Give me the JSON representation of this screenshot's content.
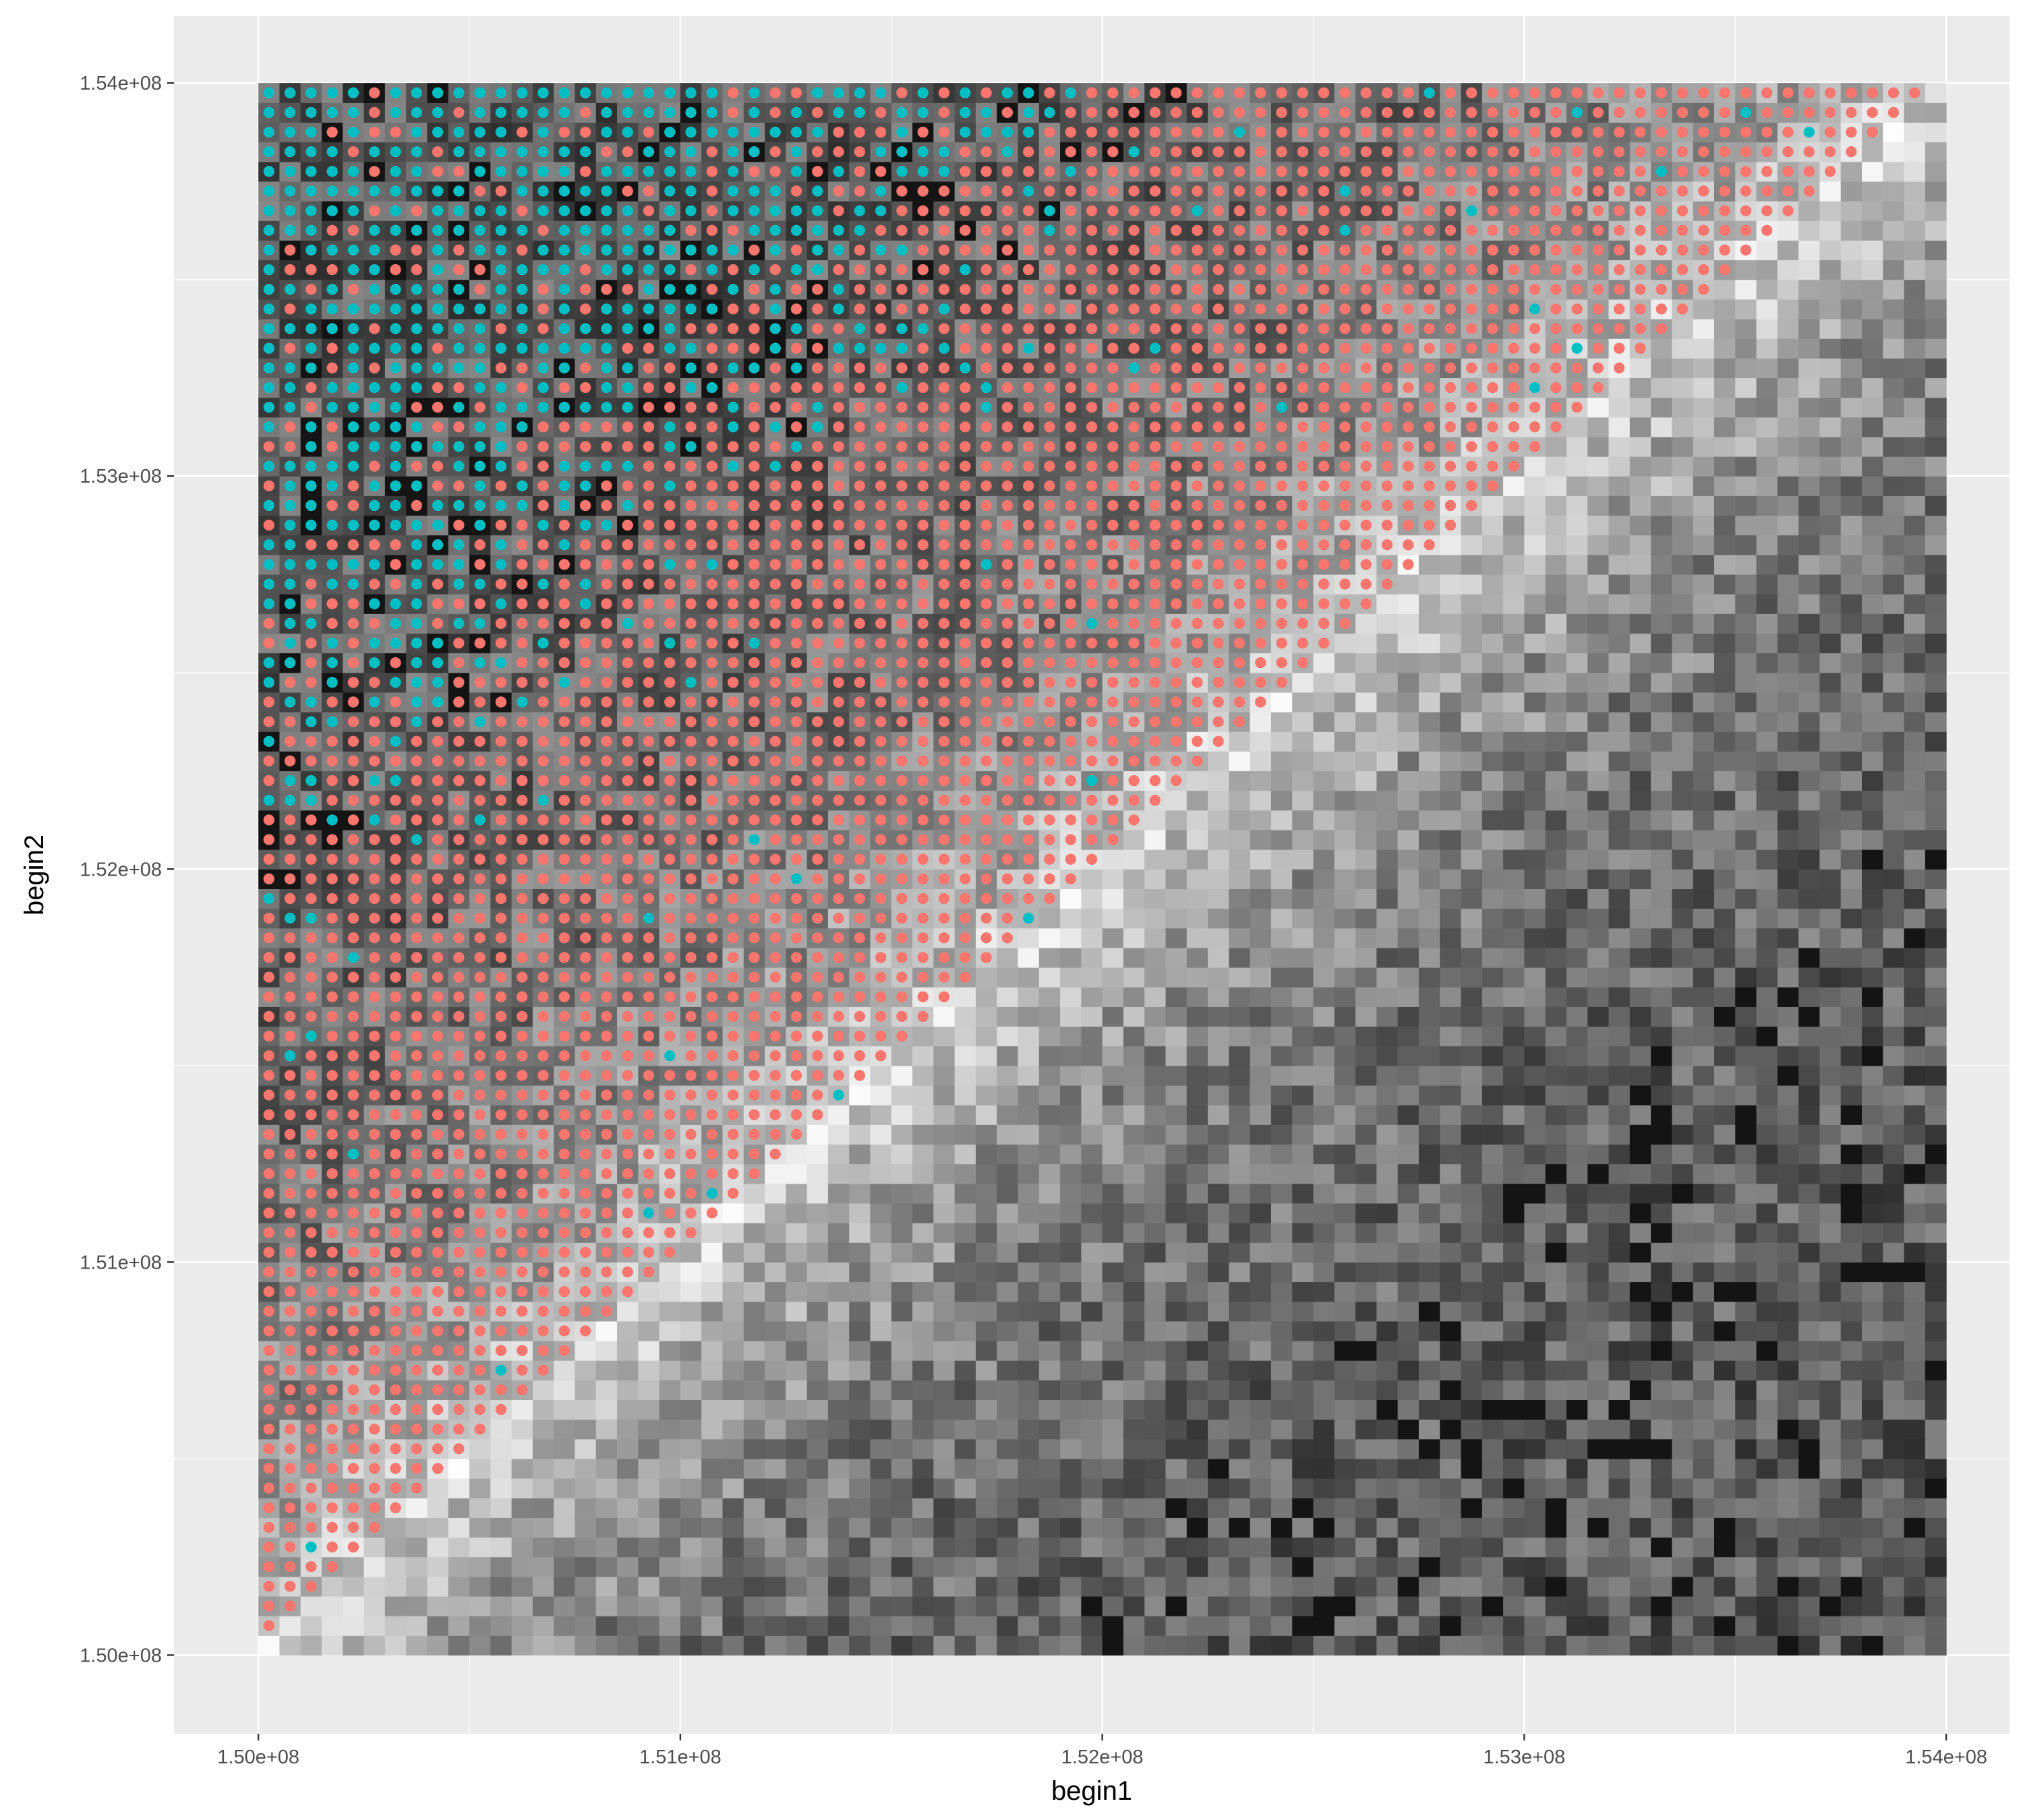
{
  "chart_data": {
    "type": "heatmap",
    "title": "",
    "xlabel": "begin1",
    "ylabel": "begin2",
    "xlim": [
      149800000,
      154150000
    ],
    "ylim": [
      149800000,
      154170000
    ],
    "grid": true,
    "legend": "none",
    "x_ticks": [
      {
        "value": 150000000,
        "label": "1.50e+08"
      },
      {
        "value": 151000000,
        "label": "1.51e+08"
      },
      {
        "value": 152000000,
        "label": "1.52e+08"
      },
      {
        "value": 153000000,
        "label": "1.53e+08"
      },
      {
        "value": 154000000,
        "label": "1.54e+08"
      }
    ],
    "y_ticks": [
      {
        "value": 150000000,
        "label": "1.50e+08"
      },
      {
        "value": 151000000,
        "label": "1.51e+08"
      },
      {
        "value": 152000000,
        "label": "1.52e+08"
      },
      {
        "value": 153000000,
        "label": "1.53e+08"
      },
      {
        "value": 154000000,
        "label": "1.54e+08"
      }
    ],
    "grid_start": 150000000,
    "bin_size": 50000,
    "n_bins": 80,
    "tile_layer": {
      "description_of_values": "grayscale intensity (0 = black, 1 = white); tiles cover every begin1/begin2 bin pair",
      "diagonal_band_intensity": 0.82,
      "far_from_diagonal_intensity": 0.35,
      "noise_amplitude": 0.18
    },
    "point_layer": {
      "region": "upper triangle (begin2 > begin1)",
      "near_diagonal_class": "coral",
      "far_corner_class": "teal",
      "teal_boundary_distance_bins": 30
    },
    "colors": {
      "panel_background": "#EBEBEB",
      "grid_major": "#FFFFFF",
      "coral_points": "#F8766D",
      "teal_points": "#00BFC4",
      "tick_text": "#4D4D4D",
      "axis_title": "#000000"
    }
  }
}
